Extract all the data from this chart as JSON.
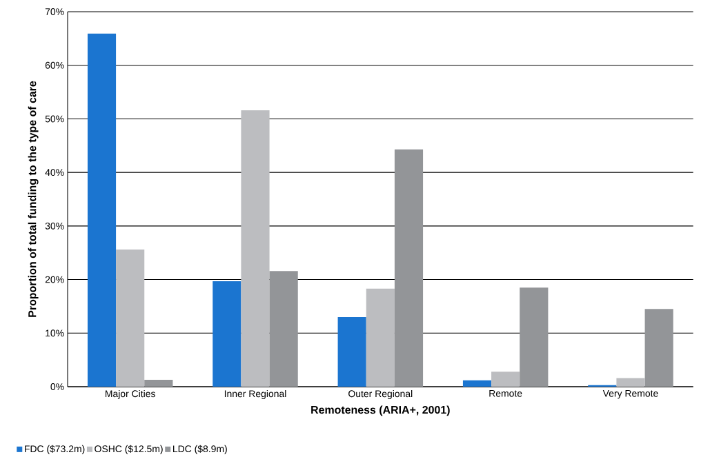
{
  "chart_data": {
    "type": "bar",
    "xlabel": "Remoteness (ARIA+, 2001)",
    "ylabel": "Proportion of total funding to the type of care",
    "categories": [
      "Major Cities",
      "Inner Regional",
      "Outer Regional",
      "Remote",
      "Very Remote"
    ],
    "series": [
      {
        "name": "FDC ($73.2m)",
        "color": "#1b75d0",
        "values": [
          65.9,
          19.7,
          13.0,
          1.2,
          0.3
        ]
      },
      {
        "name": "OSHC ($12.5m)",
        "color": "#bcbdc0",
        "values": [
          25.6,
          51.6,
          18.3,
          2.8,
          1.6
        ]
      },
      {
        "name": "LDC ($8.9m)",
        "color": "#939598",
        "values": [
          1.3,
          21.6,
          44.3,
          18.5,
          14.5
        ]
      }
    ],
    "ylim": [
      0,
      70
    ],
    "yticks": [
      {
        "value": 0,
        "label": "0%"
      },
      {
        "value": 10,
        "label": "10%"
      },
      {
        "value": 20,
        "label": "20%"
      },
      {
        "value": 30,
        "label": "30%"
      },
      {
        "value": 40,
        "label": "40%"
      },
      {
        "value": 50,
        "label": "50%"
      },
      {
        "value": 60,
        "label": "60%"
      },
      {
        "value": 70,
        "label": "70%"
      }
    ],
    "grid": "y",
    "legend": "bottom left"
  }
}
